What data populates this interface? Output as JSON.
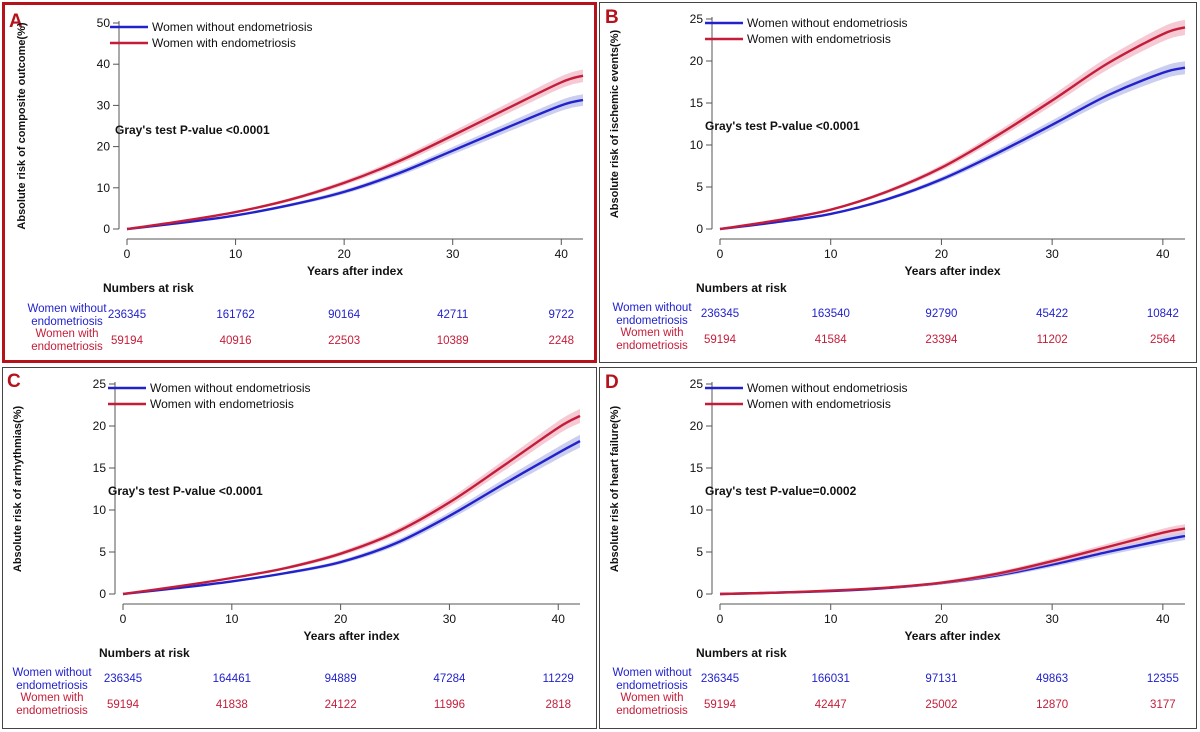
{
  "colors": {
    "without": "#2222cc",
    "with": "#c41d3a",
    "with_band": "#f2b8c6",
    "without_band": "#b9bde8",
    "highlight_border": "#b5121b",
    "panel_border": "#444444"
  },
  "legend": {
    "without": "Women without endometriosis",
    "with": "Women with endometriosis"
  },
  "risk_table": {
    "header": "Numbers at risk",
    "without_line1": "Women without",
    "without_line2": "endometriosis",
    "with_line1": "Women with",
    "with_line2": "endometriosis"
  },
  "chart_data": [
    {
      "type": "line",
      "panel": "A",
      "highlighted": true,
      "ylabel": "Absolute risk of composite outcome(%)",
      "xlabel": "Years after index",
      "annotation": "Gray's test P-value <0.0001",
      "xlim": [
        0,
        42
      ],
      "ylim": [
        0,
        50
      ],
      "xticks": [
        "0",
        "10",
        "20",
        "30",
        "40"
      ],
      "yticks": [
        "0",
        "10",
        "20",
        "30",
        "40",
        "50"
      ],
      "series": [
        {
          "name": "Women without endometriosis",
          "x": [
            0,
            5,
            10,
            15,
            20,
            25,
            30,
            35,
            40,
            42
          ],
          "y": [
            0,
            1.5,
            3.3,
            5.8,
            9.0,
            13.5,
            19.0,
            24.6,
            30.0,
            31.3
          ]
        },
        {
          "name": "Women with endometriosis",
          "x": [
            0,
            5,
            10,
            15,
            20,
            25,
            30,
            35,
            40,
            42
          ],
          "y": [
            0,
            1.9,
            4.1,
            7.1,
            11.2,
            16.4,
            22.7,
            29.2,
            35.6,
            37.2
          ]
        }
      ],
      "at_risk": {
        "without": [
          "236345",
          "161762",
          "90164",
          "42711",
          "9722"
        ],
        "with": [
          "59194",
          "40916",
          "22503",
          "10389",
          "2248"
        ]
      }
    },
    {
      "type": "line",
      "panel": "B",
      "highlighted": false,
      "ylabel": "Absolute risk of ischemic events(%)",
      "xlabel": "Years after index",
      "annotation": "Gray's test P-value <0.0001",
      "xlim": [
        0,
        42
      ],
      "ylim": [
        0,
        25
      ],
      "xticks": [
        "0",
        "10",
        "20",
        "30",
        "40"
      ],
      "yticks": [
        "0",
        "5",
        "10",
        "15",
        "20",
        "25"
      ],
      "series": [
        {
          "name": "Women without endometriosis",
          "x": [
            0,
            5,
            10,
            15,
            20,
            25,
            30,
            35,
            40,
            42
          ],
          "y": [
            0,
            0.8,
            1.8,
            3.5,
            5.9,
            9.0,
            12.4,
            15.9,
            18.6,
            19.2
          ]
        },
        {
          "name": "Women with endometriosis",
          "x": [
            0,
            5,
            10,
            15,
            20,
            25,
            30,
            35,
            40,
            42
          ],
          "y": [
            0,
            1.0,
            2.3,
            4.4,
            7.3,
            11.1,
            15.3,
            19.7,
            23.2,
            24.0
          ]
        }
      ],
      "at_risk": {
        "without": [
          "236345",
          "163540",
          "92790",
          "45422",
          "10842"
        ],
        "with": [
          "59194",
          "41584",
          "23394",
          "11202",
          "2564"
        ]
      }
    },
    {
      "type": "line",
      "panel": "C",
      "highlighted": false,
      "ylabel": "Absolute risk of arrhythmias(%)",
      "xlabel": "Years after index",
      "annotation": "Gray's test P-value <0.0001",
      "xlim": [
        0,
        42
      ],
      "ylim": [
        0,
        25
      ],
      "xticks": [
        "0",
        "10",
        "20",
        "30",
        "40"
      ],
      "yticks": [
        "0",
        "5",
        "10",
        "15",
        "20",
        "25"
      ],
      "series": [
        {
          "name": "Women without endometriosis",
          "x": [
            0,
            5,
            10,
            15,
            20,
            25,
            30,
            35,
            40,
            42
          ],
          "y": [
            0,
            0.7,
            1.5,
            2.5,
            3.8,
            6.0,
            9.3,
            13.1,
            16.8,
            18.2
          ]
        },
        {
          "name": "Women with endometriosis",
          "x": [
            0,
            5,
            10,
            15,
            20,
            25,
            30,
            35,
            40,
            42
          ],
          "y": [
            0,
            0.9,
            1.9,
            3.1,
            4.8,
            7.3,
            10.9,
            15.3,
            19.8,
            21.2
          ]
        }
      ],
      "at_risk": {
        "without": [
          "236345",
          "164461",
          "94889",
          "47284",
          "11229"
        ],
        "with": [
          "59194",
          "41838",
          "24122",
          "11996",
          "2818"
        ]
      }
    },
    {
      "type": "line",
      "panel": "D",
      "highlighted": false,
      "ylabel": "Absolute risk of heart failure(%)",
      "xlabel": "Years after index",
      "annotation": "Gray's test P-value=0.0002",
      "xlim": [
        0,
        42
      ],
      "ylim": [
        0,
        25
      ],
      "xticks": [
        "0",
        "10",
        "20",
        "30",
        "40"
      ],
      "yticks": [
        "0",
        "5",
        "10",
        "15",
        "20",
        "25"
      ],
      "series": [
        {
          "name": "Women without endometriosis",
          "x": [
            0,
            5,
            10,
            15,
            20,
            25,
            30,
            35,
            40,
            42
          ],
          "y": [
            0,
            0.15,
            0.35,
            0.7,
            1.3,
            2.2,
            3.5,
            5.0,
            6.4,
            6.9
          ]
        },
        {
          "name": "Women with endometriosis",
          "x": [
            0,
            5,
            10,
            15,
            20,
            25,
            30,
            35,
            40,
            42
          ],
          "y": [
            0,
            0.15,
            0.4,
            0.75,
            1.35,
            2.4,
            3.9,
            5.6,
            7.3,
            7.8
          ]
        }
      ],
      "at_risk": {
        "without": [
          "236345",
          "166031",
          "97131",
          "49863",
          "12355"
        ],
        "with": [
          "59194",
          "42447",
          "25002",
          "12870",
          "3177"
        ]
      }
    }
  ]
}
